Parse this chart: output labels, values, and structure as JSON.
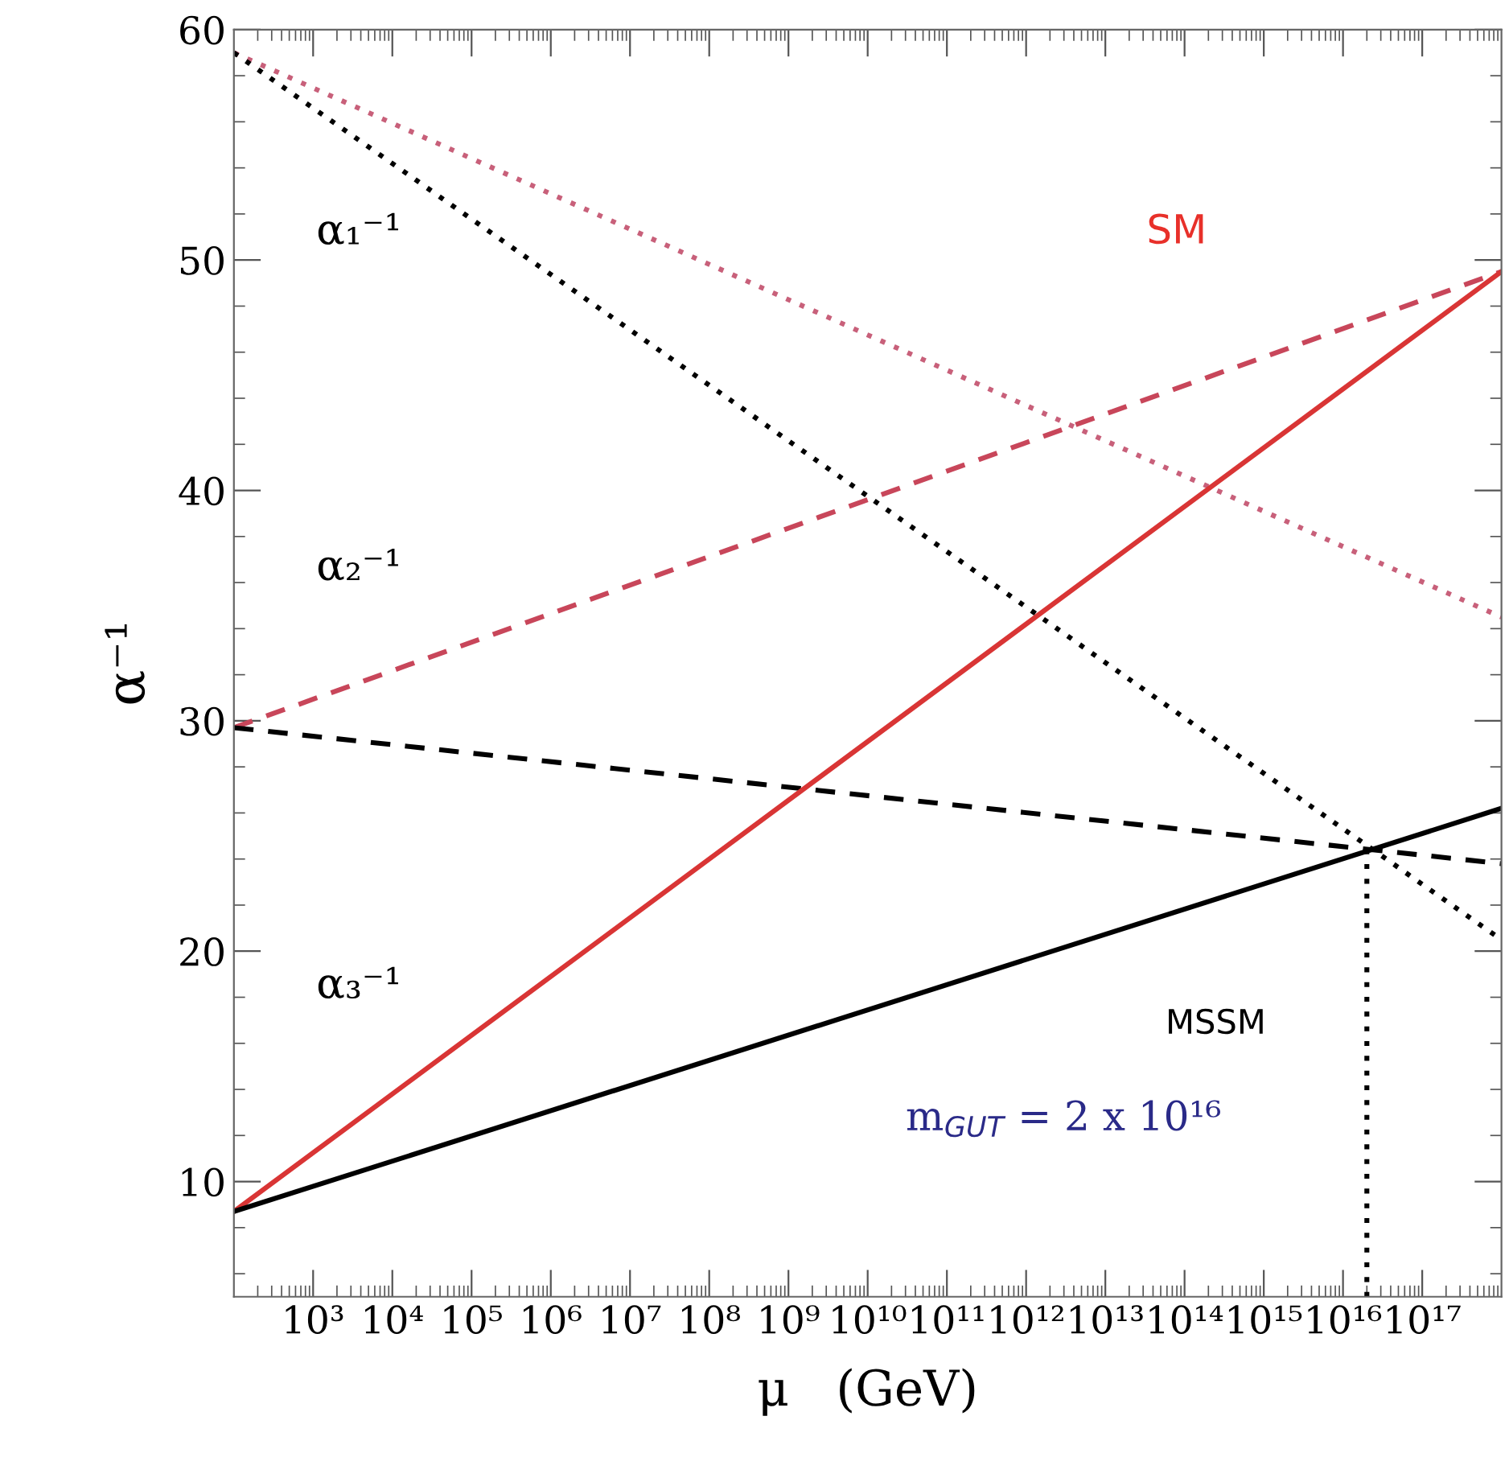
{
  "chart_data": {
    "type": "line",
    "xlabel": "μ   (GeV)",
    "ylabel": "α⁻¹",
    "log": "x",
    "xlim": [
      100.0,
      1e+18
    ],
    "ylim": [
      5,
      60
    ],
    "xticks": [
      {
        "value": 1000.0,
        "label": "10³"
      },
      {
        "value": 10000.0,
        "label": "10⁴"
      },
      {
        "value": 100000.0,
        "label": "10⁵"
      },
      {
        "value": 1000000.0,
        "label": "10⁶"
      },
      {
        "value": 10000000.0,
        "label": "10⁷"
      },
      {
        "value": 100000000.0,
        "label": "10⁸"
      },
      {
        "value": 1000000000.0,
        "label": "10⁹"
      },
      {
        "value": 10000000000.0,
        "label": "10¹⁰"
      },
      {
        "value": 100000000000.0,
        "label": "10¹¹"
      },
      {
        "value": 1000000000000.0,
        "label": "10¹²"
      },
      {
        "value": 10000000000000.0,
        "label": "10¹³"
      },
      {
        "value": 100000000000000.0,
        "label": "10¹⁴"
      },
      {
        "value": 1000000000000000.0,
        "label": "10¹⁵"
      },
      {
        "value": 1e+16,
        "label": "10¹⁶"
      },
      {
        "value": 1e+17,
        "label": "10¹⁷"
      }
    ],
    "yticks": [
      10,
      20,
      30,
      40,
      50,
      60
    ],
    "grid": false,
    "legend": false,
    "marker": "none",
    "series": [
      {
        "color": "#c8607a",
        "line_style": "dotted",
        "x": [
          100.0,
          1e+18
        ],
        "values": [
          59,
          34.5
        ]
      },
      {
        "color": "#000000",
        "line_style": "dotted",
        "x": [
          100.0,
          1e+18
        ],
        "values": [
          59,
          20.5
        ]
      },
      {
        "color": "#c8465a",
        "line_style": "dashed",
        "x": [
          100.0,
          1e+18
        ],
        "values": [
          29.7,
          49.5
        ]
      },
      {
        "color": "#000000",
        "line_style": "dashed",
        "x": [
          100.0,
          1e+18
        ],
        "values": [
          29.7,
          23.8
        ]
      },
      {
        "color": "#d93535",
        "line_style": "solid",
        "x": [
          100.0,
          1e+18
        ],
        "values": [
          8.7,
          49.5
        ]
      },
      {
        "color": "#000000",
        "line_style": "solid",
        "x": [
          100.0,
          1e+18
        ],
        "values": [
          8.7,
          26.2
        ]
      },
      {
        "color": "#000000",
        "line_style": "dotted",
        "x": [
          2e+16,
          2e+16
        ],
        "values": [
          5,
          24.4
        ]
      }
    ],
    "annotations": [
      "α₁⁻¹",
      "α₂⁻¹",
      "α₃⁻¹",
      "SM",
      "MSSM",
      "m$_{GUT}$ = 2 x 10¹⁶"
    ]
  }
}
